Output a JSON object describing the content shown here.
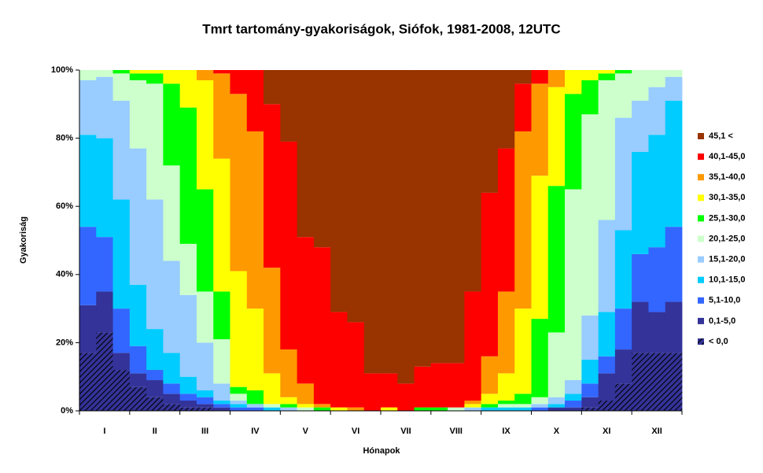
{
  "chart_data": {
    "type": "stacked_bar",
    "title": "Tmrt tartomány-gyakoriságok, Siófok, 1981-2008, 12UTC",
    "x_label": "Hónapok",
    "y_label": "Gyakoriság",
    "categories": [
      null,
      "I",
      null,
      null,
      "II",
      null,
      null,
      "III",
      null,
      null,
      "IV",
      null,
      null,
      "V",
      null,
      null,
      "VI",
      null,
      null,
      "VII",
      null,
      null,
      "VIII",
      null,
      null,
      "IX",
      null,
      null,
      "X",
      null,
      null,
      "XI",
      null,
      null,
      "XII",
      null
    ],
    "ylim": [
      0,
      100
    ],
    "yticks": [
      {
        "value": 0,
        "label": "0%"
      },
      {
        "value": 20,
        "label": "20%"
      },
      {
        "value": 40,
        "label": "40%"
      },
      {
        "value": 60,
        "label": "60%"
      },
      {
        "value": 80,
        "label": "80%"
      },
      {
        "value": 100,
        "label": "100%"
      }
    ],
    "legend": "right",
    "series": [
      {
        "name": "45,1 <",
        "color": "#993300",
        "values": [
          0,
          0,
          0,
          0,
          0,
          0,
          0,
          0,
          0,
          0,
          0,
          10,
          21,
          49,
          52,
          71,
          74,
          89,
          89,
          92,
          87,
          86,
          86,
          65,
          36,
          23,
          4,
          0,
          0,
          0,
          0,
          0,
          0,
          0,
          0,
          0
        ]
      },
      {
        "name": "40,1-45,0",
        "color": "#ff0000",
        "values": [
          0,
          0,
          0,
          0,
          0,
          0,
          0,
          0,
          1,
          7,
          18,
          48,
          61,
          43,
          46,
          28,
          25,
          11,
          10,
          8,
          12,
          13,
          13,
          32,
          48,
          42,
          14,
          4,
          0,
          0,
          0,
          0,
          0,
          0,
          0,
          0
        ]
      },
      {
        "name": "35,1-40,0",
        "color": "#ff9900",
        "values": [
          0,
          0,
          0,
          0,
          0,
          0,
          0,
          3,
          25,
          52,
          52,
          31,
          14,
          6,
          1,
          0,
          1,
          0,
          0,
          0,
          0,
          0,
          0,
          1,
          11,
          24,
          52,
          27,
          5,
          0,
          0,
          0,
          0,
          0,
          0,
          0
        ]
      },
      {
        "name": "30,1-35,0",
        "color": "#ffff00",
        "values": [
          0,
          0,
          0,
          1,
          1,
          4,
          11,
          32,
          39,
          34,
          24,
          9,
          2,
          1,
          0,
          1,
          0,
          0,
          1,
          0,
          0,
          0,
          0,
          1,
          3,
          8,
          25,
          42,
          29,
          7,
          3,
          1,
          0,
          0,
          0,
          0
        ]
      },
      {
        "name": "25,1-30,0",
        "color": "#00ff00",
        "values": [
          0,
          0,
          1,
          2,
          3,
          24,
          40,
          30,
          14,
          2,
          4,
          0,
          1,
          0,
          1,
          0,
          0,
          0,
          0,
          0,
          1,
          1,
          0,
          0,
          1,
          1,
          3,
          23,
          43,
          28,
          10,
          2,
          1,
          0,
          0,
          0
        ]
      },
      {
        "name": "20,1-25,0",
        "color": "#ccffcc",
        "values": [
          3,
          2,
          8,
          20,
          34,
          28,
          15,
          15,
          13,
          2,
          0,
          1,
          0,
          1,
          0,
          0,
          0,
          0,
          0,
          0,
          0,
          0,
          1,
          0,
          0,
          1,
          1,
          2,
          19,
          56,
          59,
          41,
          13,
          9,
          5,
          2
        ]
      },
      {
        "name": "15,1-20,0",
        "color": "#99ccff",
        "values": [
          16,
          18,
          29,
          40,
          38,
          27,
          24,
          14,
          5,
          1,
          1,
          0,
          1,
          0,
          0,
          0,
          0,
          0,
          0,
          0,
          0,
          0,
          0,
          1,
          0,
          0,
          0,
          1,
          2,
          4,
          13,
          27,
          33,
          15,
          14,
          7
        ]
      },
      {
        "name": "10,1-15,0",
        "color": "#00ccff",
        "values": [
          27,
          29,
          32,
          18,
          12,
          9,
          5,
          2,
          1,
          1,
          0,
          1,
          0,
          0,
          0,
          0,
          0,
          0,
          0,
          0,
          0,
          0,
          0,
          0,
          1,
          1,
          1,
          0,
          1,
          2,
          7,
          13,
          23,
          30,
          33,
          37
        ]
      },
      {
        "name": "5,1-10,0",
        "color": "#3366ff",
        "values": [
          23,
          16,
          13,
          8,
          3,
          3,
          2,
          2,
          1,
          1,
          1,
          0,
          0,
          0,
          0,
          0,
          0,
          0,
          0,
          0,
          0,
          0,
          0,
          0,
          0,
          0,
          0,
          1,
          0,
          2,
          4,
          5,
          12,
          14,
          19,
          22
        ]
      },
      {
        "name": "0,1-5,0",
        "color": "#333399",
        "values": [
          14,
          12,
          5,
          4,
          5,
          3,
          2,
          1,
          1,
          0,
          0,
          0,
          0,
          0,
          0,
          0,
          0,
          0,
          0,
          0,
          0,
          0,
          0,
          0,
          0,
          0,
          0,
          0,
          1,
          1,
          3,
          8,
          10,
          15,
          12,
          15
        ]
      },
      {
        "name": "< 0,0",
        "color": "#222266",
        "hatch": true,
        "values": [
          17,
          23,
          12,
          7,
          4,
          2,
          1,
          1,
          0,
          0,
          0,
          0,
          0,
          0,
          0,
          0,
          0,
          0,
          0,
          0,
          0,
          0,
          0,
          0,
          0,
          0,
          0,
          0,
          0,
          0,
          1,
          3,
          8,
          17,
          17,
          17
        ]
      }
    ]
  }
}
